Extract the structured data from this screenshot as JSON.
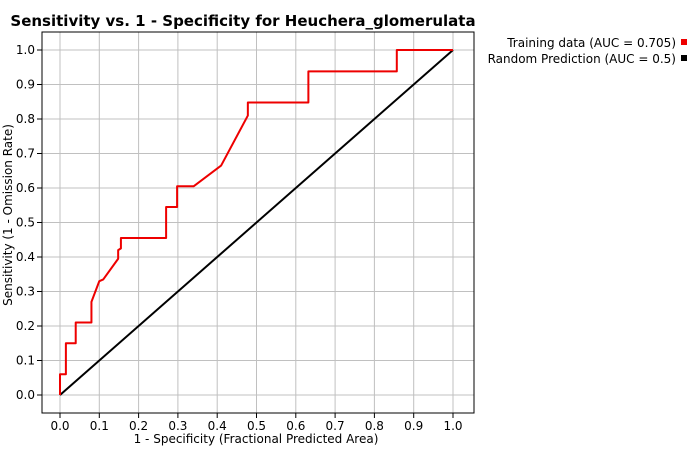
{
  "chart_data": {
    "type": "line",
    "title": "Sensitivity vs. 1 - Specificity for Heuchera_glomerulata",
    "xlabel": "1 - Specificity  (Fractional Predicted Area)",
    "ylabel": "Sensitivity  (1 - Omission Rate)",
    "xlim": [
      0,
      1
    ],
    "ylim": [
      0,
      1
    ],
    "xticks": [
      "0.0",
      "0.1",
      "0.2",
      "0.3",
      "0.4",
      "0.5",
      "0.6",
      "0.7",
      "0.8",
      "0.9",
      "1.0"
    ],
    "yticks": [
      "0.0",
      "0.1",
      "0.2",
      "0.3",
      "0.4",
      "0.5",
      "0.6",
      "0.7",
      "0.8",
      "0.9",
      "1.0"
    ],
    "grid": true,
    "legend_position": "top-right-outside",
    "series": [
      {
        "name": "Training data (AUC = 0.705)",
        "color": "#ee0000",
        "x": [
          0.0,
          0.0,
          0.005,
          0.015,
          0.015,
          0.04,
          0.04,
          0.08,
          0.08,
          0.1,
          0.11,
          0.148,
          0.148,
          0.155,
          0.155,
          0.27,
          0.27,
          0.298,
          0.298,
          0.34,
          0.41,
          0.478,
          0.478,
          0.632,
          0.632,
          0.857,
          0.857,
          1.0
        ],
        "y": [
          0.0,
          0.06,
          0.06,
          0.06,
          0.15,
          0.15,
          0.21,
          0.21,
          0.27,
          0.33,
          0.335,
          0.395,
          0.42,
          0.425,
          0.455,
          0.455,
          0.545,
          0.545,
          0.605,
          0.605,
          0.665,
          0.81,
          0.848,
          0.848,
          0.938,
          0.938,
          1.0,
          1.0
        ]
      },
      {
        "name": "Random Prediction (AUC = 0.5)",
        "color": "#000000",
        "x": [
          0.0,
          1.0
        ],
        "y": [
          0.0,
          1.0
        ]
      }
    ]
  }
}
